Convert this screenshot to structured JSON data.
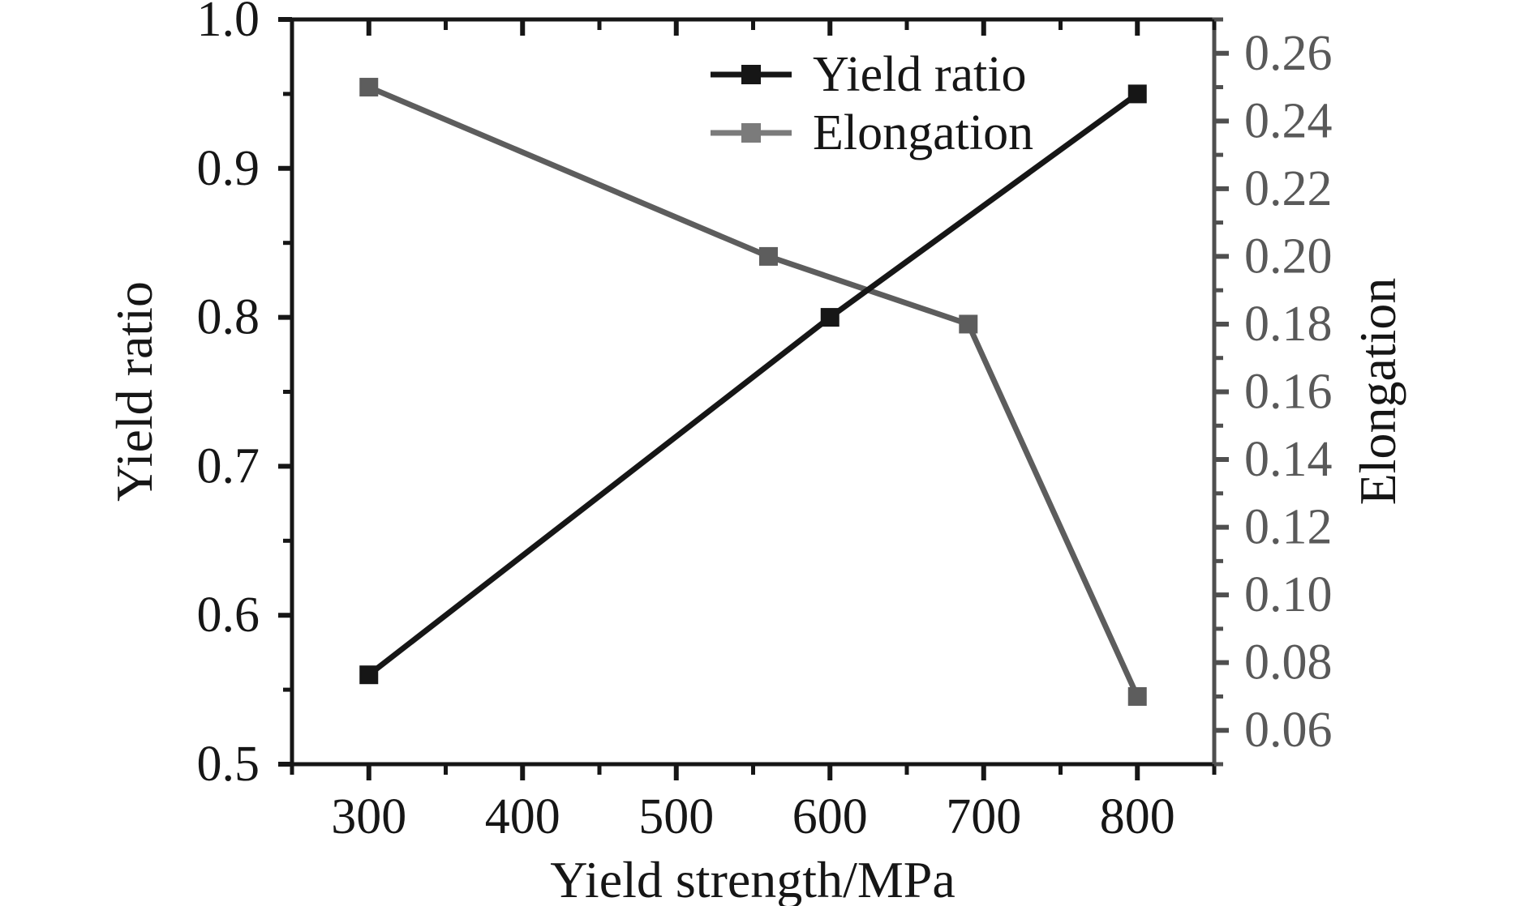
{
  "chart_data": {
    "type": "line",
    "title": "",
    "xlabel": "Yield strength/MPa",
    "grid": false,
    "x_axis": {
      "range": [
        250,
        850
      ],
      "major_ticks": [
        300,
        400,
        500,
        600,
        700,
        800
      ],
      "tick_labels": [
        "300",
        "400",
        "500",
        "600",
        "700",
        "800"
      ],
      "minor_step": 50
    },
    "y_axis_left": {
      "label": "Yield ratio",
      "range": [
        0.5,
        1.0
      ],
      "major_ticks": [
        0.5,
        0.6,
        0.7,
        0.8,
        0.9,
        1.0
      ],
      "tick_labels": [
        "0.5",
        "0.6",
        "0.7",
        "0.8",
        "0.9",
        "1.0"
      ],
      "minor_step": 0.05,
      "color": "#161616"
    },
    "y_axis_right": {
      "label": "Elongation",
      "range": [
        0.05,
        0.27
      ],
      "major_ticks": [
        0.06,
        0.08,
        0.1,
        0.12,
        0.14,
        0.16,
        0.18,
        0.2,
        0.22,
        0.24,
        0.26
      ],
      "tick_labels": [
        "0.06",
        "0.08",
        "0.10",
        "0.12",
        "0.14",
        "0.16",
        "0.18",
        "0.20",
        "0.22",
        "0.24",
        "0.26"
      ],
      "minor_step": 0.01,
      "spine_color": "#4f4f4f",
      "tick_label_color": "#595959"
    },
    "series": [
      {
        "name": "Yield ratio",
        "axis": "left",
        "color": "#161616",
        "marker": "filled-square",
        "x": [
          300,
          600,
          800
        ],
        "y": [
          0.56,
          0.8,
          0.95
        ]
      },
      {
        "name": "Elongation",
        "axis": "right",
        "color": "#5d5d5d",
        "marker": "filled-square",
        "x": [
          300,
          560,
          690,
          800
        ],
        "y": [
          0.25,
          0.2,
          0.18,
          0.07
        ]
      }
    ],
    "legend": {
      "position": "top-center",
      "entries": [
        {
          "label": "Yield ratio",
          "color": "#161616"
        },
        {
          "label": "Elongation",
          "color": "#7b7b7b"
        }
      ]
    }
  },
  "colors": {
    "background": "#ffffff",
    "axis_black": "#161616"
  }
}
